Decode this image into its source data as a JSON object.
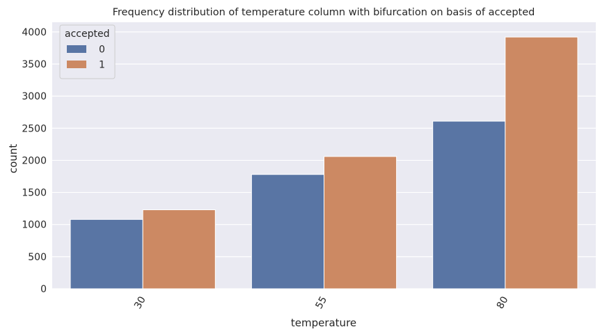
{
  "chart_data": {
    "type": "bar",
    "title": "Frequency distribution of temperature column with bifurcation on basis of accepted",
    "xlabel": "temperature",
    "ylabel": "count",
    "categories": [
      "30",
      "55",
      "80"
    ],
    "series": [
      {
        "name": "0",
        "values": [
          1080,
          1780,
          2610
        ],
        "color": "#5975a4"
      },
      {
        "name": "1",
        "values": [
          1230,
          2060,
          3920
        ],
        "color": "#cc8963"
      }
    ],
    "yticks": [
      0,
      500,
      1000,
      1500,
      2000,
      2500,
      3000,
      3500,
      4000
    ],
    "ylim": [
      0,
      4150
    ],
    "grid": true,
    "legend": {
      "title": "accepted",
      "placement": "top-left"
    },
    "background_color": "#eaeaf2",
    "x_tick_rotation_deg": -60
  }
}
